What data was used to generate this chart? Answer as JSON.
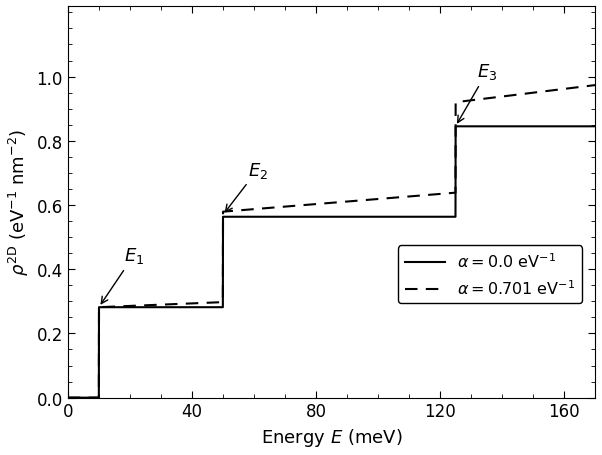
{
  "title": "",
  "xlabel": "Energy $E$ (meV)",
  "ylabel": "$\\rho^{\\mathrm{2D}}$ (eV$^{-1}$ nm$^{-2}$)",
  "xlim": [
    0,
    170
  ],
  "ylim": [
    0,
    1.22
  ],
  "xticks": [
    0,
    40,
    80,
    120,
    160
  ],
  "yticks": [
    0,
    0.2,
    0.4,
    0.6,
    0.8,
    1.0
  ],
  "E1_meV": 10,
  "E2_meV": 50,
  "E3_meV": 125,
  "rho0": 0.2817,
  "alpha": 0.701,
  "legend_solid": "$\\alpha = 0.0$ eV$^{-1}$",
  "legend_dashed": "$\\alpha = 0.701$ eV$^{-1}$",
  "figsize": [
    6.02,
    4.56
  ],
  "dpi": 100
}
